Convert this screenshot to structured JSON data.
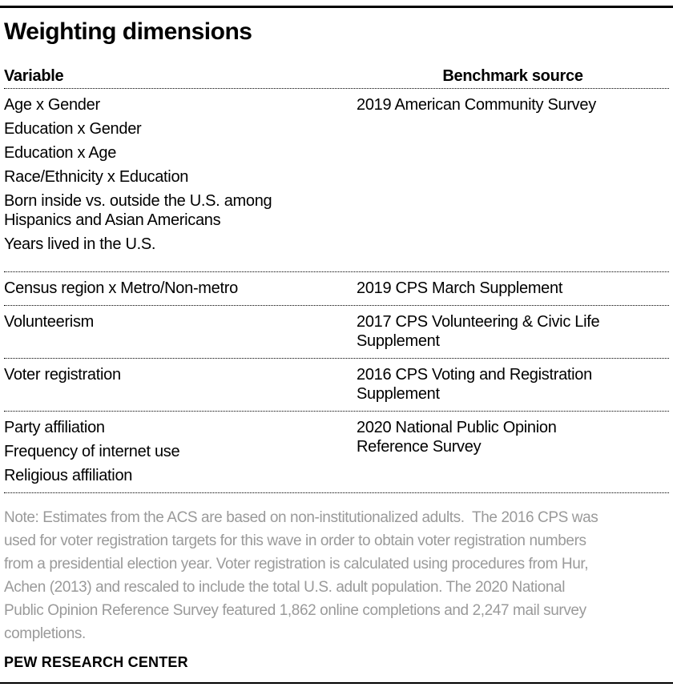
{
  "page": {
    "title": "Weighting dimensions",
    "footer": "PEW RESEARCH CENTER"
  },
  "colors": {
    "text": "#000000",
    "note_text": "#9a9a9a",
    "rule": "#000000",
    "separator_dotted": "#000000"
  },
  "table": {
    "headers": {
      "variable": "Variable",
      "source": "Benchmark source"
    },
    "groups": [
      {
        "variables": [
          [
            "Age x Gender"
          ],
          [
            "Education x Gender"
          ],
          [
            "Education x Age"
          ],
          [
            "Race/Ethnicity x Education"
          ],
          [
            "Born inside vs. outside the U.S. among",
            "Hispanics and Asian Americans"
          ],
          [
            "Years lived in the U.S."
          ]
        ],
        "source": [
          "2019 American Community Survey"
        ]
      },
      {
        "variables": [
          [
            "Census region x Metro/Non-metro"
          ]
        ],
        "source": [
          "2019 CPS March Supplement"
        ]
      },
      {
        "variables": [
          [
            "Volunteerism"
          ]
        ],
        "source": [
          "2017 CPS Volunteering & Civic Life",
          "Supplement"
        ]
      },
      {
        "variables": [
          [
            "Voter registration"
          ]
        ],
        "source": [
          "2016 CPS Voting and Registration",
          "Supplement"
        ]
      },
      {
        "variables": [
          [
            "Party affiliation"
          ],
          [
            "Frequency of internet use"
          ],
          [
            "Religious affiliation"
          ]
        ],
        "source": [
          "2020 National Public Opinion",
          "Reference Survey"
        ]
      }
    ]
  },
  "note": {
    "lines": [
      "Note: Estimates from the ACS are based on non-institutionalized adults.  The 2016 CPS was",
      "used for voter registration targets for this wave in order to obtain voter registration numbers",
      "from a presidential election year. Voter registration is calculated using procedures from Hur,",
      "Achen (2013) and rescaled to include the total U.S. adult population. The 2020 National",
      "Public Opinion Reference Survey featured 1,862 online completions and 2,247 mail survey",
      "completions."
    ]
  }
}
